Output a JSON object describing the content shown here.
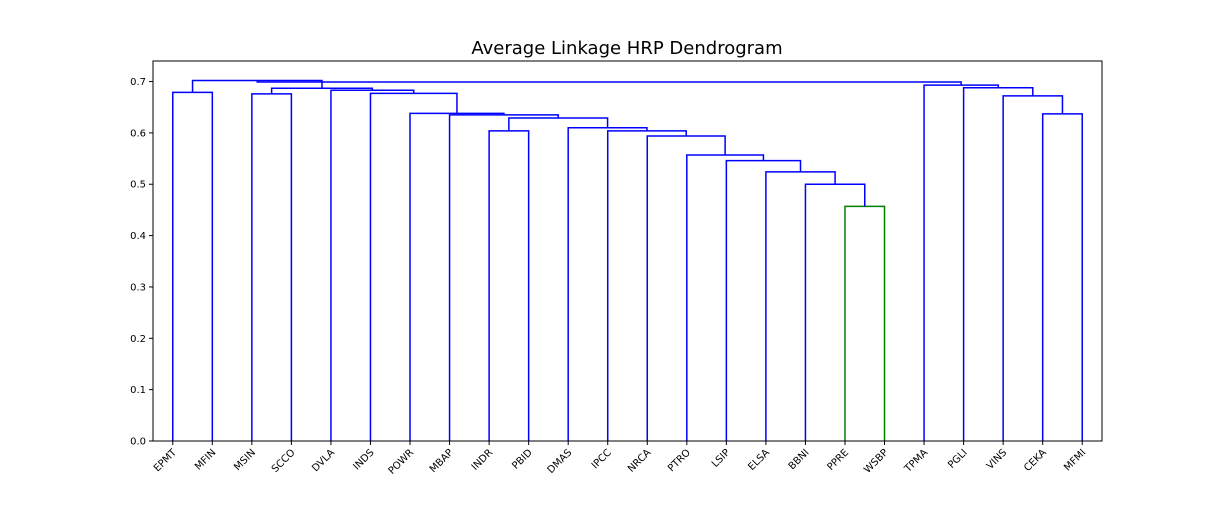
{
  "chart_data": {
    "type": "dendrogram",
    "title": "Average Linkage HRP Dendrogram",
    "xlabel": "",
    "ylabel": "",
    "ylim": [
      0,
      0.74
    ],
    "y_ticks": [
      "0.0",
      "0.1",
      "0.2",
      "0.3",
      "0.4",
      "0.5",
      "0.6",
      "0.7"
    ],
    "leaves": [
      "EPMT",
      "MFIN",
      "MSIN",
      "SCCO",
      "DVLA",
      "INDS",
      "POWR",
      "MBAP",
      "INDR",
      "PBID",
      "DMAS",
      "IPCC",
      "NRCA",
      "PTRO",
      "LSIP",
      "ELSA",
      "BBNI",
      "PPRE",
      "WSBP",
      "TPMA",
      "PGLI",
      "VINS",
      "CEKA",
      "MFMI"
    ],
    "colors": {
      "link": "#0000ff",
      "cluster": "#008000",
      "axes": "#000000"
    },
    "merges": [
      {
        "left": "PPRE",
        "right": "WSBP",
        "height": 0.457,
        "color": "cluster"
      },
      {
        "left": "BBNI",
        "right": "c0",
        "height": 0.5,
        "color": "link"
      },
      {
        "left": "ELSA",
        "right": "c1",
        "height": 0.524,
        "color": "link"
      },
      {
        "left": "LSIP",
        "right": "c2",
        "height": 0.546,
        "color": "link"
      },
      {
        "left": "PTRO",
        "right": "c3",
        "height": 0.557,
        "color": "link"
      },
      {
        "left": "NRCA",
        "right": "c4",
        "height": 0.594,
        "color": "link"
      },
      {
        "left": "IPCC",
        "right": "c5",
        "height": 0.604,
        "color": "link"
      },
      {
        "left": "DMAS",
        "right": "c6",
        "height": 0.61,
        "color": "link"
      },
      {
        "left": "INDR",
        "right": "PBID",
        "height": 0.604,
        "color": "link"
      },
      {
        "left": "c8",
        "right": "c7",
        "height": 0.629,
        "color": "link"
      },
      {
        "left": "MBAP",
        "right": "c9",
        "height": 0.635,
        "color": "link"
      },
      {
        "left": "POWR",
        "right": "c10",
        "height": 0.638,
        "color": "link"
      },
      {
        "left": "INDS",
        "right": "c11",
        "height": 0.677,
        "color": "link"
      },
      {
        "left": "DVLA",
        "right": "c12",
        "height": 0.683,
        "color": "link"
      },
      {
        "left": "MSIN",
        "right": "SCCO",
        "height": 0.676,
        "color": "link"
      },
      {
        "left": "c14",
        "right": "c13",
        "height": 0.687,
        "color": "link"
      },
      {
        "left": "EPMT",
        "right": "MFIN",
        "height": 0.679,
        "color": "link"
      },
      {
        "left": "CEKA",
        "right": "MFMI",
        "height": 0.637,
        "color": "link"
      },
      {
        "left": "VINS",
        "right": "c17",
        "height": 0.672,
        "color": "link"
      },
      {
        "left": "PGLI",
        "right": "c18",
        "height": 0.688,
        "color": "link"
      },
      {
        "left": "TPMA",
        "right": "c19",
        "height": 0.693,
        "color": "link"
      },
      {
        "left": "c16",
        "right": "c15",
        "height": 0.702,
        "color": "link"
      },
      {
        "left": "c21",
        "right": "c20",
        "height": 0.699,
        "color": "link"
      }
    ]
  }
}
